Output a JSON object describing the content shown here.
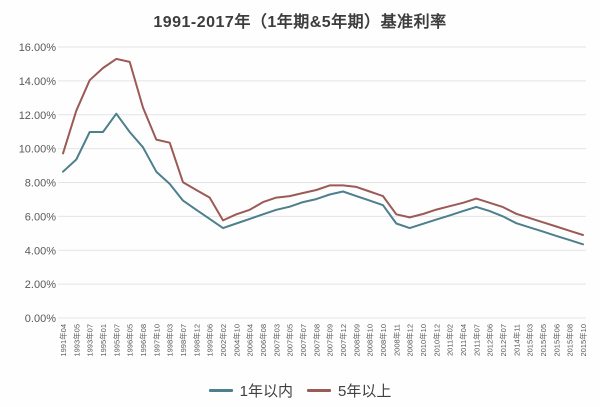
{
  "title": "1991-2017年（1年期&5年期）基准利率",
  "chart_data": {
    "type": "line",
    "title": "1991-2017年（1年期&5年期）基准利率",
    "xlabel": "",
    "ylabel": "",
    "ylim": [
      0,
      16
    ],
    "ytick_step": 2,
    "ytick_labels": [
      "0.00%",
      "2.00%",
      "4.00%",
      "6.00%",
      "8.00%",
      "10.00%",
      "12.00%",
      "14.00%",
      "16.00%"
    ],
    "grid": true,
    "grid_color": "#e4e4e4",
    "axis_label_color": "#595959",
    "legend_position": "bottom",
    "categories": [
      "1991年04",
      "1993年05",
      "1993年07",
      "1995年01",
      "1995年07",
      "1996年05",
      "1996年08",
      "1997年10",
      "1998年03",
      "1998年07",
      "1998年12",
      "1999年06",
      "2002年02",
      "2004年10",
      "2006年04",
      "2006年08",
      "2007年03",
      "2007年05",
      "2007年07",
      "2007年08",
      "2007年09",
      "2007年12",
      "2008年09",
      "2008年10",
      "2008年10",
      "2008年11",
      "2008年12",
      "2010年10",
      "2010年12",
      "2011年02",
      "2011年04",
      "2011年07",
      "2012年06",
      "2012年07",
      "2014年11",
      "2015年03",
      "2015年05",
      "2015年06",
      "2015年08",
      "2015年10"
    ],
    "series": [
      {
        "name": "1年以内",
        "color": "#4e7f8c",
        "values": [
          8.64,
          9.36,
          10.98,
          10.98,
          12.06,
          10.98,
          10.08,
          8.64,
          7.92,
          6.93,
          6.39,
          5.85,
          5.31,
          5.58,
          5.85,
          6.12,
          6.39,
          6.57,
          6.84,
          7.02,
          7.29,
          7.47,
          7.2,
          6.93,
          6.66,
          5.58,
          5.31,
          5.56,
          5.81,
          6.06,
          6.31,
          6.56,
          6.31,
          6.0,
          5.6,
          5.35,
          5.1,
          4.85,
          4.6,
          4.35
        ]
      },
      {
        "name": "5年以上",
        "color": "#9b5a56",
        "values": [
          9.72,
          12.24,
          14.04,
          14.76,
          15.3,
          15.12,
          12.42,
          10.53,
          10.35,
          8.01,
          7.56,
          7.11,
          5.76,
          6.12,
          6.39,
          6.84,
          7.11,
          7.2,
          7.38,
          7.56,
          7.83,
          7.83,
          7.74,
          7.47,
          7.2,
          6.12,
          5.94,
          6.14,
          6.4,
          6.6,
          6.8,
          7.05,
          6.8,
          6.55,
          6.15,
          5.9,
          5.65,
          5.4,
          5.15,
          4.9
        ]
      }
    ]
  },
  "legend": {
    "items": [
      {
        "label": "1年以内",
        "color": "#4e7f8c"
      },
      {
        "label": "5年以上",
        "color": "#9b5a56"
      }
    ]
  }
}
